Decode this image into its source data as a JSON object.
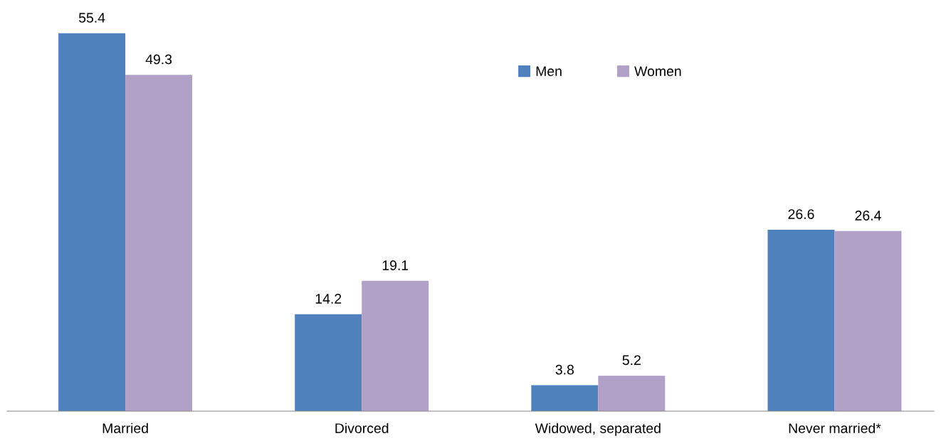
{
  "chart_data": {
    "type": "bar",
    "categories": [
      "Married",
      "Divorced",
      "Widowed, separated",
      "Never married*"
    ],
    "series": [
      {
        "name": "Men",
        "color": "#4f81bd",
        "values": [
          55.4,
          14.2,
          3.8,
          26.6
        ]
      },
      {
        "name": "Women",
        "color": "#b2a1c7",
        "values": [
          49.3,
          19.1,
          5.2,
          26.4
        ]
      }
    ],
    "data_labels": true,
    "legend": "top",
    "grid": false
  }
}
